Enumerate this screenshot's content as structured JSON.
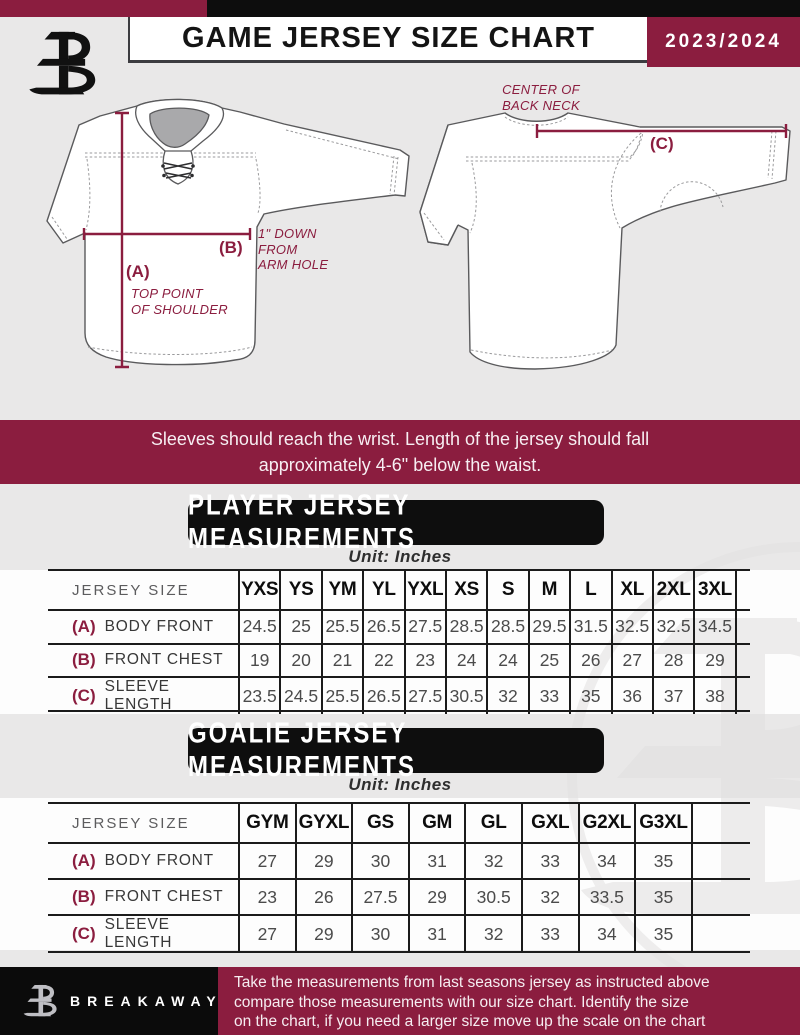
{
  "header": {
    "title": "GAME JERSEY SIZE CHART",
    "season": "2023/2024"
  },
  "diagram": {
    "labels": {
      "a_key": "(A)",
      "a_text": "TOP POINT\nOF SHOULDER",
      "b_key": "(B)",
      "b_text": "1\" DOWN\nFROM\nARM HOLE",
      "c_key": "(C)",
      "c_text": "CENTER OF\nBACK NECK"
    }
  },
  "notice": {
    "lines": [
      "Sleeves should reach the wrist. Length of the jersey should fall",
      "approximately 4-6\" below the waist."
    ]
  },
  "player_section": {
    "heading": "PLAYER JERSEY MEASUREMENTS",
    "unit": "Unit: Inches",
    "table": {
      "size_header": "JERSEY SIZE",
      "sizes": [
        "YXS",
        "YS",
        "YM",
        "YL",
        "YXL",
        "XS",
        "S",
        "M",
        "L",
        "XL",
        "2XL",
        "3XL"
      ],
      "rows": [
        {
          "key": "(A)",
          "label": "BODY FRONT",
          "values": [
            "24.5",
            "25",
            "25.5",
            "26.5",
            "27.5",
            "28.5",
            "28.5",
            "29.5",
            "31.5",
            "32.5",
            "32.5",
            "34.5"
          ]
        },
        {
          "key": "(B)",
          "label": "FRONT CHEST",
          "values": [
            "19",
            "20",
            "21",
            "22",
            "23",
            "24",
            "24",
            "25",
            "26",
            "27",
            "28",
            "29"
          ]
        },
        {
          "key": "(C)",
          "label": "SLEEVE LENGTH",
          "values": [
            "23.5",
            "24.5",
            "25.5",
            "26.5",
            "27.5",
            "30.5",
            "32",
            "33",
            "35",
            "36",
            "37",
            "38"
          ]
        }
      ]
    }
  },
  "goalie_section": {
    "heading": "GOALIE JERSEY MEASUREMENTS",
    "unit": "Unit: Inches",
    "table": {
      "size_header": "JERSEY SIZE",
      "sizes": [
        "GYM",
        "GYXL",
        "GS",
        "GM",
        "GL",
        "GXL",
        "G2XL",
        "G3XL"
      ],
      "rows": [
        {
          "key": "(A)",
          "label": "BODY FRONT",
          "values": [
            "27",
            "29",
            "30",
            "31",
            "32",
            "33",
            "34",
            "35"
          ]
        },
        {
          "key": "(B)",
          "label": "FRONT CHEST",
          "values": [
            "23",
            "26",
            "27.5",
            "29",
            "30.5",
            "32",
            "33.5",
            "35"
          ]
        },
        {
          "key": "(C)",
          "label": "SLEEVE LENGTH",
          "values": [
            "27",
            "29",
            "30",
            "31",
            "32",
            "33",
            "34",
            "35"
          ]
        }
      ]
    }
  },
  "footer": {
    "brand": "BREAKAWAY",
    "lines": [
      "Take the measurements from last seasons jersey as instructed above",
      "compare those measurements  with our size chart. Identify the size",
      "on the chart, if you need a larger size move up the scale on the chart"
    ]
  },
  "colors": {
    "maroon": "#8B1D3F",
    "black": "#0D0D0D",
    "background": "#E9E8E8"
  }
}
